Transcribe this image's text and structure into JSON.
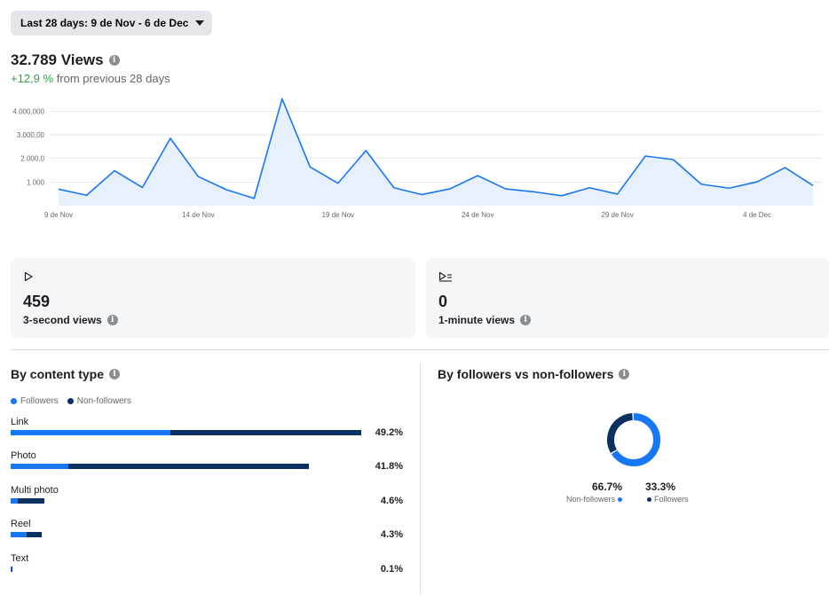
{
  "date_range": {
    "label": "Last 28 days: 9 de Nov - 6 de Dec"
  },
  "views": {
    "title": "32.789 Views",
    "change": "+12,9 %",
    "change_suffix": " from previous 28 days"
  },
  "colors": {
    "line": "#1877f2",
    "area": "#e7f0fd",
    "grid": "#e4e6eb",
    "followers": "#1877f2",
    "non_followers": "#0a3161"
  },
  "chart_data": {
    "type": "area",
    "y_tick_labels": [
      "4.000,000",
      "3.000,00",
      "2.000,0",
      "1.000"
    ],
    "y_ticks": [
      4000,
      3000,
      2000,
      1000
    ],
    "x_tick_labels": [
      "9 de Nov",
      "14 de Nov",
      "19 de Nov",
      "24 de Nov",
      "29 de Nov",
      "4 de Dec"
    ],
    "x_tick_index": [
      0,
      5,
      10,
      15,
      20,
      25
    ],
    "ylim": [
      0,
      4800
    ],
    "series": [
      {
        "values": [
          700,
          440,
          1480,
          770,
          2850,
          1230,
          680,
          310,
          4520,
          1640,
          950,
          2330,
          760,
          470,
          710,
          1270,
          710,
          590,
          420,
          760,
          490,
          2100,
          1950,
          910,
          740,
          1010,
          1610,
          850
        ]
      }
    ],
    "grid": true
  },
  "cards": [
    {
      "icon": "play-icon",
      "value": "459",
      "label": "3-second views"
    },
    {
      "icon": "play-list-icon",
      "value": "0",
      "label": "1-minute views"
    }
  ],
  "content_type": {
    "title": "By content type",
    "legend": {
      "followers": "Followers",
      "non_followers": "Non-followers"
    },
    "rows": [
      {
        "name": "Link",
        "pct": "49.2%",
        "followers_frac": 0.455,
        "non_followers_frac": 0.545,
        "total": 1.0
      },
      {
        "name": "Photo",
        "pct": "41.8%",
        "followers_frac": 0.195,
        "non_followers_frac": 0.805,
        "total": 0.85
      },
      {
        "name": "Multi photo",
        "pct": "4.6%",
        "followers_frac": 0.2,
        "non_followers_frac": 0.8,
        "total": 0.096
      },
      {
        "name": "Reel",
        "pct": "4.3%",
        "followers_frac": 0.5,
        "non_followers_frac": 0.5,
        "total": 0.089
      },
      {
        "name": "Text",
        "pct": "0.1%",
        "followers_frac": 0.5,
        "non_followers_frac": 0.5,
        "total": 0.003
      }
    ]
  },
  "followers": {
    "title": "By followers vs non-followers",
    "non_followers_value": "66.7%",
    "non_followers_label": "Non-followers",
    "followers_value": "33.3%",
    "followers_label": "Followers",
    "non_followers_frac": 0.667,
    "followers_frac": 0.333
  }
}
